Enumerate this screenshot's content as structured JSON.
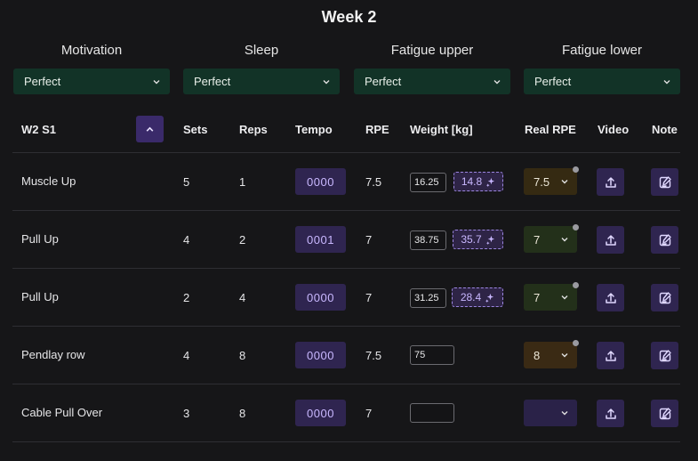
{
  "week_title": "Week 2",
  "status": [
    {
      "label": "Motivation",
      "value": "Perfect"
    },
    {
      "label": "Sleep",
      "value": "Perfect"
    },
    {
      "label": "Fatigue upper",
      "value": "Perfect"
    },
    {
      "label": "Fatigue lower",
      "value": "Perfect"
    }
  ],
  "table": {
    "session_label": "W2 S1",
    "headers": {
      "sets": "Sets",
      "reps": "Reps",
      "tempo": "Tempo",
      "rpe": "RPE",
      "weight": "Weight [kg]",
      "real_rpe": "Real RPE",
      "video": "Video",
      "note": "Note"
    },
    "rows": [
      {
        "exercise": "Muscle Up",
        "sets": "5",
        "reps": "1",
        "tempo": "0000",
        "rpe": "7.5",
        "weight": "16.25",
        "suggested": "14.8",
        "real_rpe": "7.5",
        "real_rpe_color": "#352a12",
        "has_dot": true
      },
      {
        "exercise": "Pull Up",
        "sets": "4",
        "reps": "2",
        "tempo": "0001",
        "rpe": "7",
        "weight": "38.75",
        "suggested": "35.7",
        "real_rpe": "7",
        "real_rpe_color": "#23301a",
        "has_dot": true
      },
      {
        "exercise": "Pull Up",
        "sets": "2",
        "reps": "4",
        "tempo": "0000",
        "rpe": "7",
        "weight": "31.25",
        "suggested": "28.4",
        "real_rpe": "7",
        "real_rpe_color": "#23301a",
        "has_dot": true
      },
      {
        "exercise": "Pendlay row",
        "sets": "4",
        "reps": "8",
        "tempo": "0000",
        "rpe": "7.5",
        "weight": "75",
        "suggested": "",
        "real_rpe": "8",
        "real_rpe_color": "#3a2a14",
        "has_dot": true
      },
      {
        "exercise": "Cable Pull Over",
        "sets": "3",
        "reps": "8",
        "tempo": "0000",
        "rpe": "7",
        "weight": "",
        "suggested": "",
        "real_rpe": "",
        "real_rpe_color": "#2a2248",
        "has_dot": false
      }
    ]
  },
  "icons": {
    "collapse": "chevron-up-icon",
    "dropdown": "chevron-down-icon",
    "suggest": "sparkle-icon",
    "video": "upload-icon",
    "note": "edit-note-icon"
  },
  "colors": {
    "background": "#161618",
    "status_select": "#123327",
    "accent_button": "#2f2550",
    "accent_text": "#c9b8ff"
  }
}
